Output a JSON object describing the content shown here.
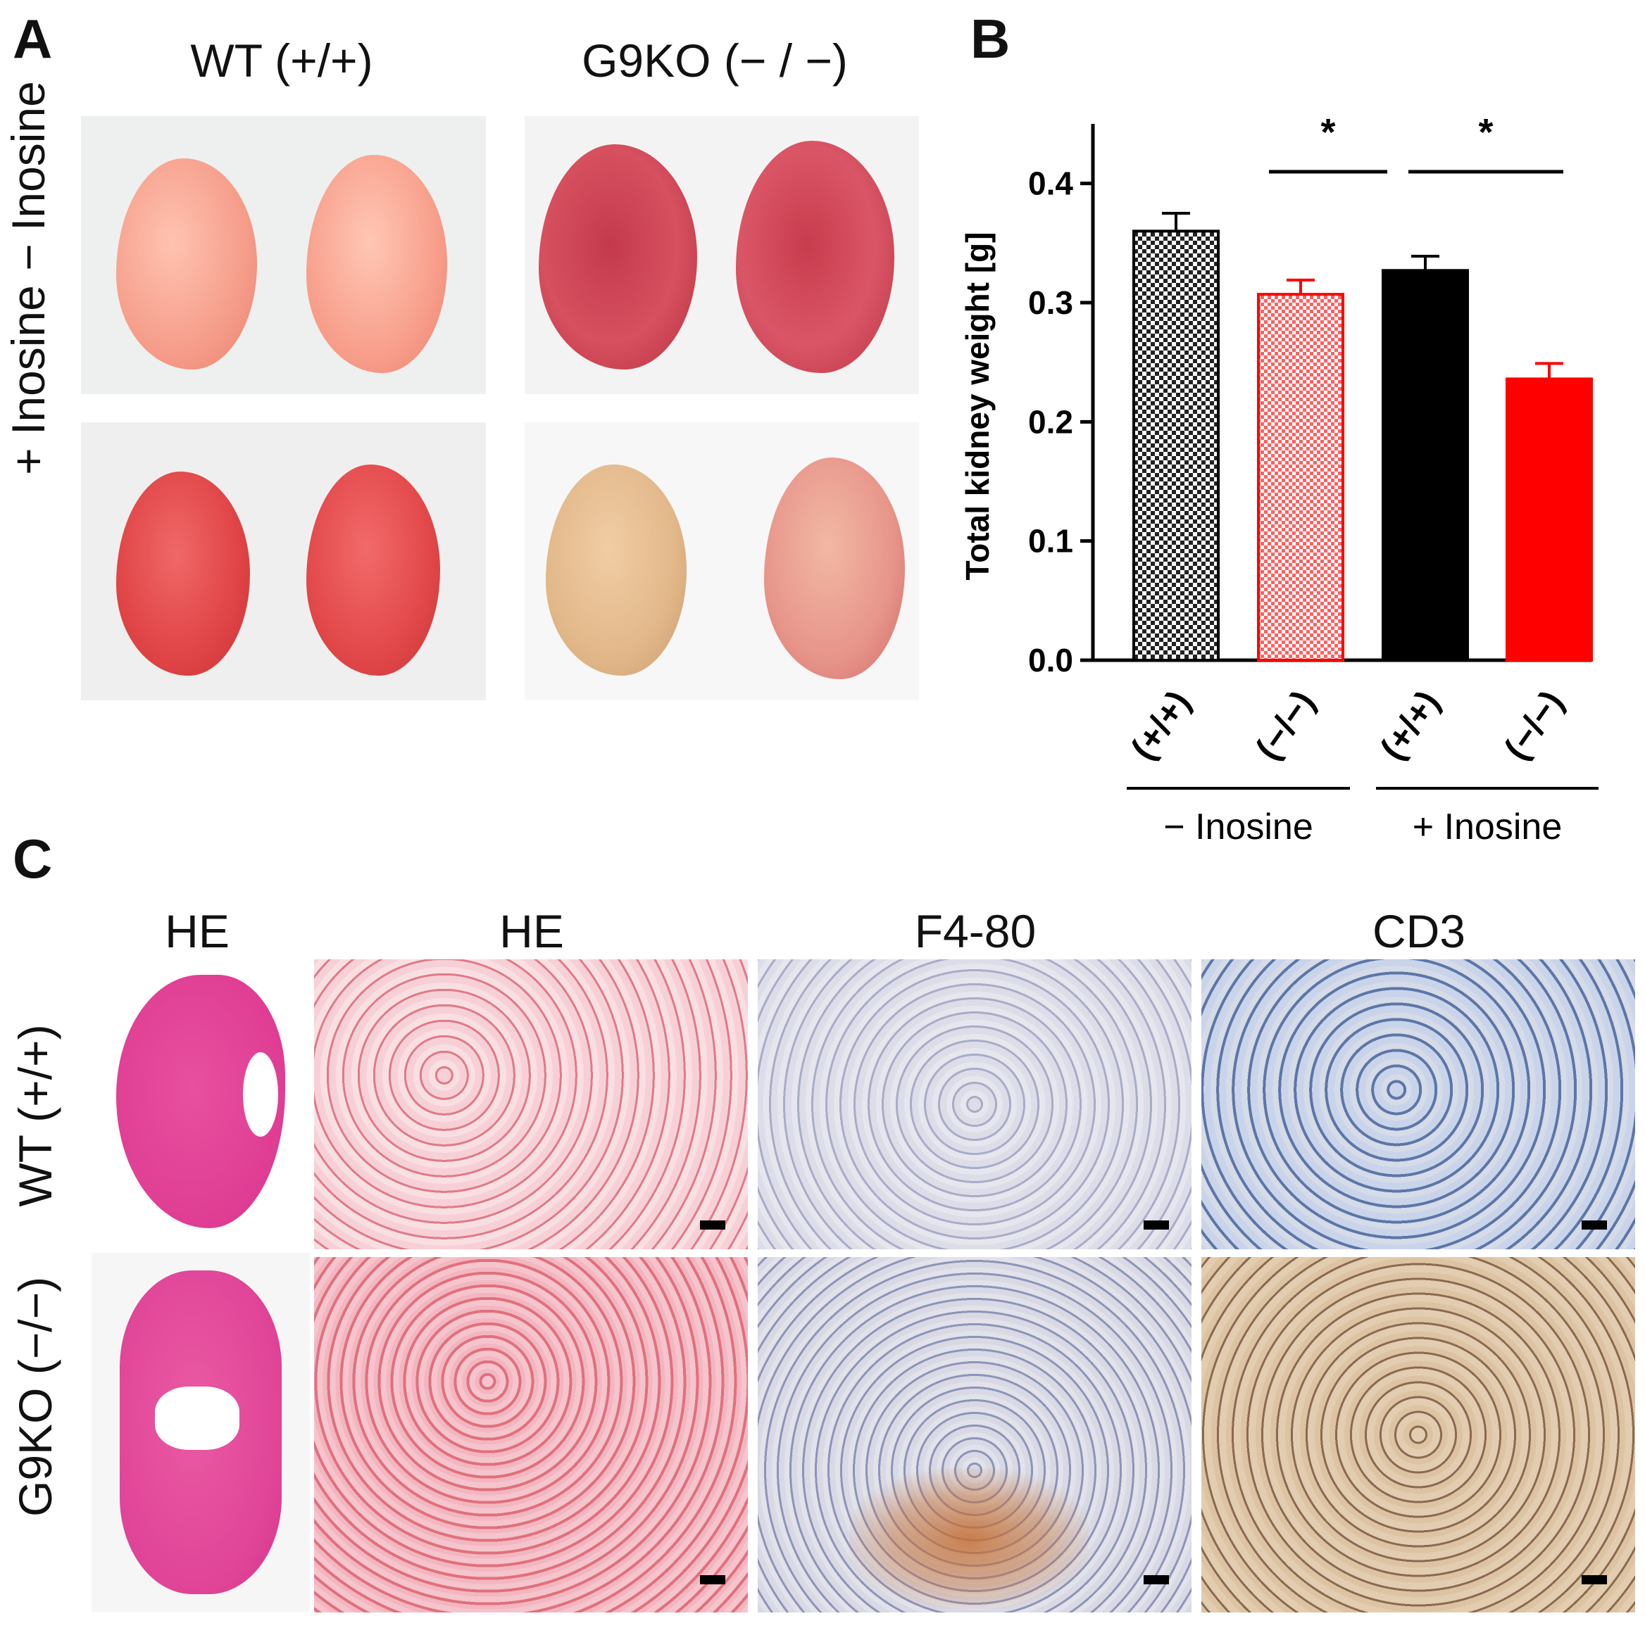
{
  "panelA": {
    "letter": "A",
    "col_headers": [
      "WT (+/+)",
      "G9KO (− / −)"
    ],
    "row_headers": [
      "− Inosine",
      "+ Inosine"
    ]
  },
  "panelB": {
    "letter": "B"
  },
  "panelC": {
    "letter": "C",
    "col_headers": [
      "HE",
      "HE",
      "F4-80",
      "CD3"
    ],
    "row_headers": [
      "WT (+/+)",
      "G9KO (−/−)"
    ]
  },
  "chart_data": {
    "type": "bar",
    "ylabel": "Total kidney weight [g]",
    "ylim": [
      0.0,
      0.45
    ],
    "yticks": [
      "0.0",
      "0.1",
      "0.2",
      "0.3",
      "0.4"
    ],
    "ytick_values": [
      0.0,
      0.1,
      0.2,
      0.3,
      0.4
    ],
    "categories": [
      "(+/+)",
      "(−/−)",
      "(+/+)",
      "(−/−)"
    ],
    "values": [
      0.36,
      0.307,
      0.327,
      0.236
    ],
    "errors": [
      0.015,
      0.012,
      0.012,
      0.013
    ],
    "bar_styles": [
      "black-checker",
      "red-checker",
      "black",
      "red"
    ],
    "colors": {
      "black": "#000000",
      "red": "#ff0000"
    },
    "groups": [
      {
        "label": "− Inosine",
        "members": [
          0,
          1
        ]
      },
      {
        "label": "+ Inosine",
        "members": [
          2,
          3
        ]
      }
    ],
    "significance": [
      {
        "from": 0,
        "to": 1,
        "label": "*"
      },
      {
        "from": 1,
        "to": 3,
        "label": "*"
      }
    ],
    "grid": false
  }
}
